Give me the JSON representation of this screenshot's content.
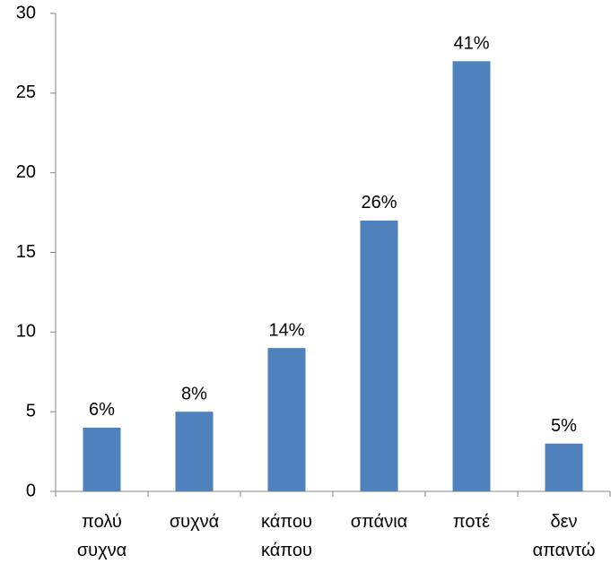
{
  "chart_data": {
    "type": "bar",
    "categories": [
      "πολύ συχνα",
      "συχνά",
      "κάπου κάπου",
      "σπάνια",
      "ποτέ",
      "δεν απαντώ"
    ],
    "values": [
      4,
      5,
      9,
      17,
      27,
      3
    ],
    "percent_labels": [
      "6%",
      "8%",
      "14%",
      "26%",
      "41%",
      "5%"
    ],
    "color": "#4f81bd",
    "ylim": [
      0,
      30
    ],
    "yticks": [
      0,
      5,
      10,
      15,
      20,
      25,
      30
    ],
    "grid": false
  }
}
